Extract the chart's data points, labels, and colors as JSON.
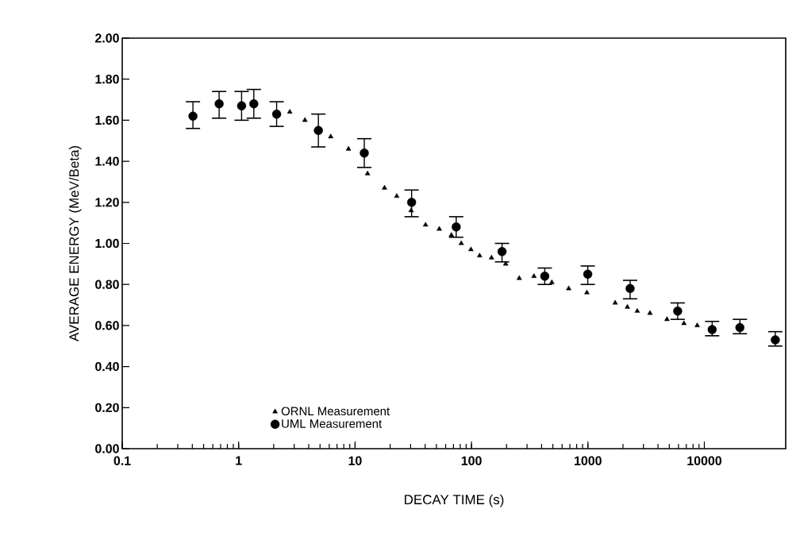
{
  "chart_data": {
    "type": "scatter",
    "xlabel": "DECAY TIME (s)",
    "ylabel": "AVERAGE ENERGY (MeV/Beta)",
    "log": "x",
    "xlim": [
      0.1,
      50000
    ],
    "xticks": [
      0.1,
      1,
      10,
      100,
      1000,
      10000
    ],
    "ylim": [
      0,
      2
    ],
    "yticks": [
      {
        "value": 0,
        "label": "0.00"
      },
      {
        "value": 0.2,
        "label": "0.20"
      },
      {
        "value": 0.4,
        "label": "0.40"
      },
      {
        "value": 0.6,
        "label": "0.60"
      },
      {
        "value": 0.8,
        "label": "0.80"
      },
      {
        "value": 1,
        "label": "1.00"
      },
      {
        "value": 1.2,
        "label": "1.20"
      },
      {
        "value": 1.4,
        "label": "1.40"
      },
      {
        "value": 1.6,
        "label": "1.60"
      },
      {
        "value": 1.8,
        "label": "1.80"
      },
      {
        "value": 2,
        "label": "2.00"
      }
    ],
    "grid": false,
    "legend": "bottom left",
    "series": [
      {
        "name": "ORNL Measurement",
        "color": "#000000",
        "marker": "triangle",
        "x": [
          2.75,
          3.71,
          6.18,
          8.78,
          12.8,
          17.9,
          22.8,
          30.3,
          40.3,
          52.9,
          67.2,
          81.7,
          98.9,
          117.5,
          148.6,
          196.7,
          257,
          344,
          490,
          684,
          980,
          1714,
          2183,
          2654,
          3412,
          4775,
          6681,
          8686
        ],
        "values": [
          1.64,
          1.6,
          1.52,
          1.46,
          1.34,
          1.27,
          1.23,
          1.16,
          1.09,
          1.07,
          1.04,
          1.0,
          0.97,
          0.94,
          0.93,
          0.9,
          0.83,
          0.84,
          0.81,
          0.78,
          0.76,
          0.71,
          0.69,
          0.67,
          0.66,
          0.63,
          0.61,
          0.6
        ]
      },
      {
        "name": "UML Measurement",
        "color": "#000000",
        "marker": "circle",
        "x": [
          0.405,
          0.68,
          1.06,
          1.35,
          2.12,
          4.84,
          12.0,
          30.6,
          73.9,
          183,
          426,
          997,
          2303,
          5902,
          11670,
          20200,
          40700
        ],
        "values": [
          1.62,
          1.68,
          1.67,
          1.68,
          1.63,
          1.55,
          1.44,
          1.2,
          1.08,
          0.96,
          0.84,
          0.85,
          0.78,
          0.67,
          0.58,
          0.59,
          0.53
        ],
        "errors": [
          [
            1.56,
            1.69
          ],
          [
            1.61,
            1.74
          ],
          [
            1.6,
            1.74
          ],
          [
            1.61,
            1.75
          ],
          [
            1.57,
            1.69
          ],
          [
            1.47,
            1.63
          ],
          [
            1.37,
            1.51
          ],
          [
            1.13,
            1.26
          ],
          [
            1.03,
            1.13
          ],
          [
            0.91,
            1.0
          ],
          [
            0.8,
            0.88
          ],
          [
            0.8,
            0.89
          ],
          [
            0.73,
            0.82
          ],
          [
            0.63,
            0.71
          ],
          [
            0.55,
            0.62
          ],
          [
            0.56,
            0.63
          ],
          [
            0.5,
            0.57
          ]
        ]
      }
    ]
  }
}
